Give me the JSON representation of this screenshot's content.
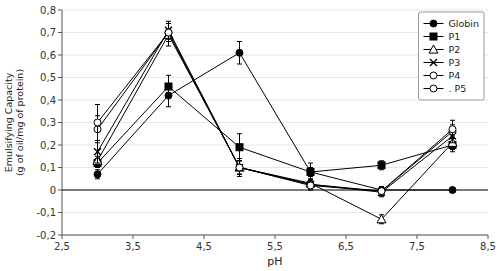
{
  "chart_data": {
    "type": "line",
    "x": [
      3.0,
      4.0,
      5.0,
      6.0,
      7.0,
      8.0
    ],
    "xlabel": "pH",
    "ylabel": "Emulsifying Capacity\n(g of oil/mg of protein)",
    "xlim": [
      2.5,
      8.5
    ],
    "ylim": [
      -0.2,
      0.8
    ],
    "xticks": [
      {
        "value": 2.5,
        "label": "2,5"
      },
      {
        "value": 3.5,
        "label": "3,5"
      },
      {
        "value": 4.5,
        "label": "4,5"
      },
      {
        "value": 5.5,
        "label": "5,5"
      },
      {
        "value": 6.5,
        "label": "6,5"
      },
      {
        "value": 7.5,
        "label": "7,5"
      },
      {
        "value": 8.5,
        "label": "8,5"
      }
    ],
    "yticks": [
      {
        "value": -0.2,
        "label": "-0,2"
      },
      {
        "value": -0.1,
        "label": "-0,1"
      },
      0,
      {
        "value": 0.1,
        "label": "0,1"
      },
      {
        "value": 0.2,
        "label": "0,2"
      },
      {
        "value": 0.3,
        "label": "0,3"
      },
      {
        "value": 0.4,
        "label": "0,4"
      },
      {
        "value": 0.5,
        "label": "0,5"
      },
      {
        "value": 0.6,
        "label": "0,6"
      },
      {
        "value": 0.7,
        "label": "0,7"
      },
      {
        "value": 0.8,
        "label": "0,8"
      }
    ],
    "legend": "upper right",
    "series": [
      {
        "name": "Globin",
        "marker": "circle",
        "color": "black",
        "values": [
          0.07,
          0.42,
          0.61,
          0.08,
          0.0,
          0.0
        ],
        "errors": [
          0.02,
          0.05,
          0.05,
          0.02,
          0.005,
          0.005
        ]
      },
      {
        "name": "P1",
        "marker": "square",
        "color": "black",
        "values": [
          0.12,
          0.46,
          0.19,
          0.08,
          0.11,
          0.2
        ],
        "errors": [
          0.02,
          0.05,
          0.06,
          0.04,
          0.02,
          0.03
        ]
      },
      {
        "name": "P2",
        "marker": "triangle",
        "color": "white",
        "values": [
          0.13,
          0.69,
          0.1,
          0.03,
          -0.13,
          0.21
        ],
        "errors": [
          0.02,
          0.05,
          0.04,
          0.02,
          0.02,
          0.03
        ]
      },
      {
        "name": "P3",
        "marker": "x",
        "color": "black",
        "values": [
          0.17,
          0.71,
          0.1,
          0.025,
          -0.01,
          0.24
        ],
        "errors": [
          0.05,
          0.04,
          0.03,
          0.02,
          0.02,
          0.03
        ]
      },
      {
        "name": "P4",
        "marker": "circle",
        "color": "white",
        "values": [
          0.27,
          0.7,
          0.1,
          0.025,
          -0.005,
          0.26
        ],
        "errors": [
          0.06,
          0.04,
          0.03,
          0.02,
          0.02,
          0.03
        ]
      },
      {
        "name": ". P5",
        "marker": "circle",
        "color": "white",
        "values": [
          0.3,
          0.7,
          0.1,
          0.02,
          -0.005,
          0.27
        ],
        "errors": [
          0.08,
          0.04,
          0.03,
          0.02,
          0.02,
          0.04
        ]
      }
    ]
  }
}
